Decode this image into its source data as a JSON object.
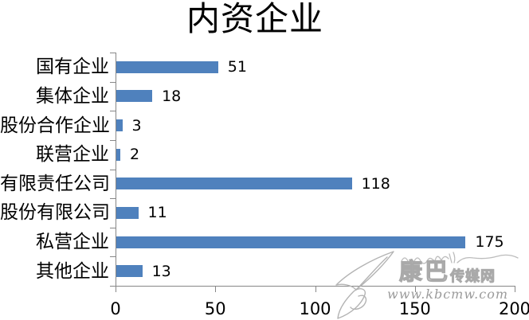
{
  "title": "内资企业",
  "chart_data": {
    "type": "bar",
    "orientation": "horizontal",
    "title": "内资企业",
    "categories": [
      "国有企业",
      "集体企业",
      "股份合作企业",
      "联营企业",
      "有限责任公司",
      "股份有限公司",
      "私营企业",
      "其他企业"
    ],
    "values": [
      51,
      18,
      3,
      2,
      118,
      11,
      175,
      13
    ],
    "xlabel": "",
    "ylabel": "",
    "xlim": [
      0,
      200
    ],
    "x_ticks": [
      0,
      50,
      100,
      150,
      200
    ],
    "data_labels": true,
    "grid": false,
    "legend": false,
    "bar_color": "#4F81BD",
    "axis_color": "#878787",
    "background_color": "#FFFFFF"
  },
  "watermark": {
    "logo": "paper-plane-sketch-icon",
    "script_decoration": "tibetan-script-squiggle",
    "site_name_main": "康巴",
    "site_name_suffix": "传媒网",
    "url": "www.kbcmw.com",
    "color": "#a9a9a9"
  }
}
